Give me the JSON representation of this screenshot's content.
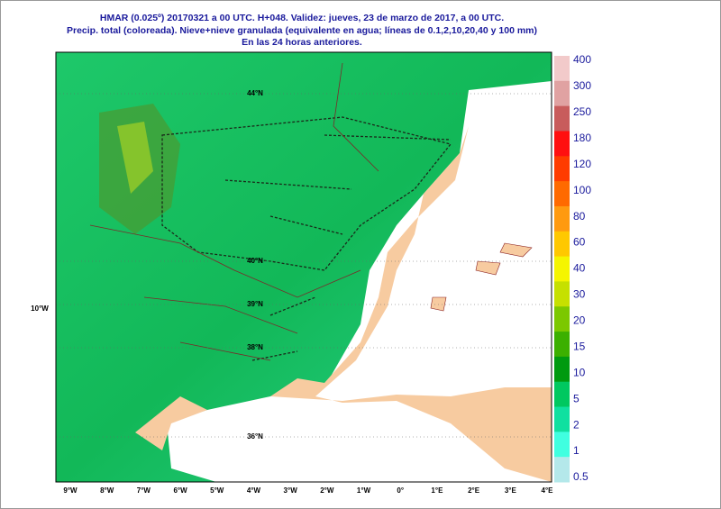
{
  "header": {
    "lines": [
      "HMAR (0.025º) 20170321 a 00 UTC.  H+048. Validez: jueves, 23 de marzo de 2017,  a  00 UTC.",
      "Precip. total (coloreada). Nieve+nieve granulada (equivalente en agua; líneas de 0.1,2,10,20,40 y 100 mm)",
      "En las 24 horas anteriores."
    ]
  },
  "legend": {
    "labels": [
      "400",
      "300",
      "250",
      "180",
      "120",
      "100",
      "80",
      "60",
      "40",
      "30",
      "20",
      "15",
      "10",
      "5",
      "2",
      "1",
      "0.5"
    ],
    "colors": [
      "#f2caca",
      "#e0a2a2",
      "#c85c5c",
      "#ff1010",
      "#ff3c00",
      "#ff6a00",
      "#ff9a10",
      "#ffc800",
      "#f5f500",
      "#c6e000",
      "#7cc800",
      "#3cb000",
      "#009a10",
      "#00c860",
      "#10e0a0",
      "#40ffe0",
      "#b4e8ea"
    ]
  },
  "map": {
    "lon_labels": [
      "9°W",
      "8°W",
      "7°W",
      "6°W",
      "5°W",
      "4°W",
      "3°W",
      "2°W",
      "1°W",
      "0°",
      "1°E",
      "2°E",
      "3°E",
      "4°E"
    ],
    "lon_left": "10°W",
    "lat_labels": [
      "44°N",
      "40°N",
      "39°N",
      "38°N",
      "36°N"
    ]
  }
}
